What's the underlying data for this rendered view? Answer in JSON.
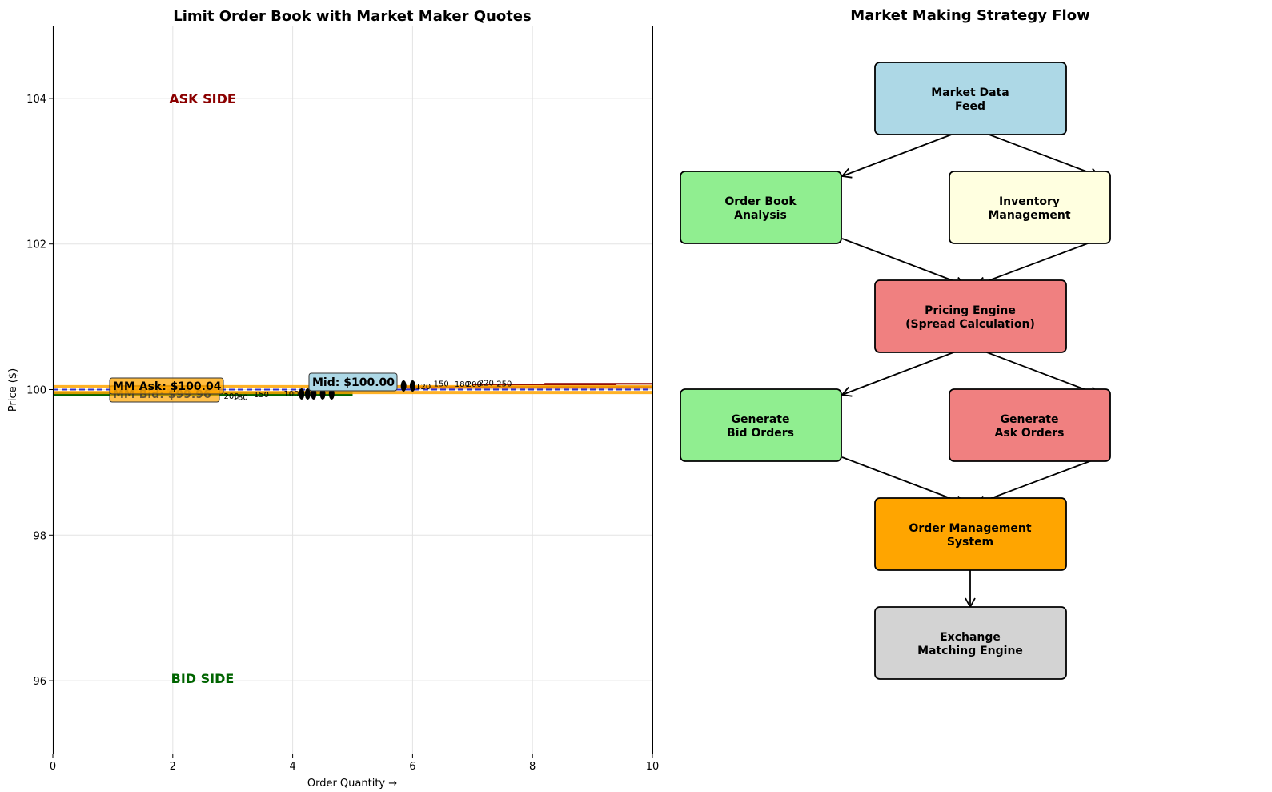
{
  "chart_data": {
    "type": "line",
    "title": "Limit Order Book with Market Maker Quotes",
    "xlabel": "Order Quantity →",
    "ylabel": "Price ($)",
    "xlim": [
      0,
      10
    ],
    "ylim": [
      95,
      105
    ],
    "xticks": [
      "0",
      "2",
      "4",
      "6",
      "8",
      "10"
    ],
    "yticks": [
      "96",
      "98",
      "100",
      "102",
      "104"
    ],
    "grid": true,
    "side_labels": {
      "ask": "ASK SIDE",
      "bid": "BID SIDE"
    },
    "colors": {
      "ask": "#8b0000",
      "bid": "#006400",
      "market_maker": "#ffa500",
      "mid": "#3333cc",
      "mid_box": "#add8e6"
    },
    "mid_price": {
      "price": 100.0,
      "label": "Mid: $100.00"
    },
    "mm_quotes": {
      "ask": {
        "price": 100.04,
        "label": "MM Ask: $100.04"
      },
      "bid": {
        "price": 99.96,
        "label": "MM Bid: $99.96"
      }
    },
    "ask_levels": [
      {
        "price": 100.05,
        "quantity": "120"
      },
      {
        "price": 100.07,
        "quantity": "150"
      },
      {
        "price": 100.08,
        "quantity": "180"
      },
      {
        "price": 100.08,
        "quantity": "200"
      },
      {
        "price": 100.09,
        "quantity": "220"
      },
      {
        "price": 100.08,
        "quantity": "250"
      }
    ],
    "bid_levels": [
      {
        "price": 99.94,
        "quantity": "100"
      },
      {
        "price": 99.92,
        "quantity": "150"
      },
      {
        "price": 99.9,
        "quantity": "180"
      },
      {
        "price": 99.91,
        "quantity": "200"
      }
    ]
  },
  "flow": {
    "title": "Market Making Strategy Flow",
    "boxes": [
      {
        "id": "feed",
        "line1": "Market Data",
        "line2": "Feed",
        "color": "#add8e6"
      },
      {
        "id": "ob",
        "line1": "Order Book",
        "line2": "Analysis",
        "color": "#90ee90"
      },
      {
        "id": "inv",
        "line1": "Inventory",
        "line2": "Management",
        "color": "#ffffe0"
      },
      {
        "id": "pricing",
        "line1": "Pricing Engine",
        "line2": "(Spread Calculation)",
        "color": "#f08080"
      },
      {
        "id": "bid",
        "line1": "Generate",
        "line2": "Bid Orders",
        "color": "#90ee90"
      },
      {
        "id": "ask",
        "line1": "Generate",
        "line2": "Ask Orders",
        "color": "#f08080"
      },
      {
        "id": "oms",
        "line1": "Order Management",
        "line2": "System",
        "color": "#ffa500"
      },
      {
        "id": "exch",
        "line1": "Exchange",
        "line2": "Matching Engine",
        "color": "#d3d3d3"
      }
    ]
  }
}
